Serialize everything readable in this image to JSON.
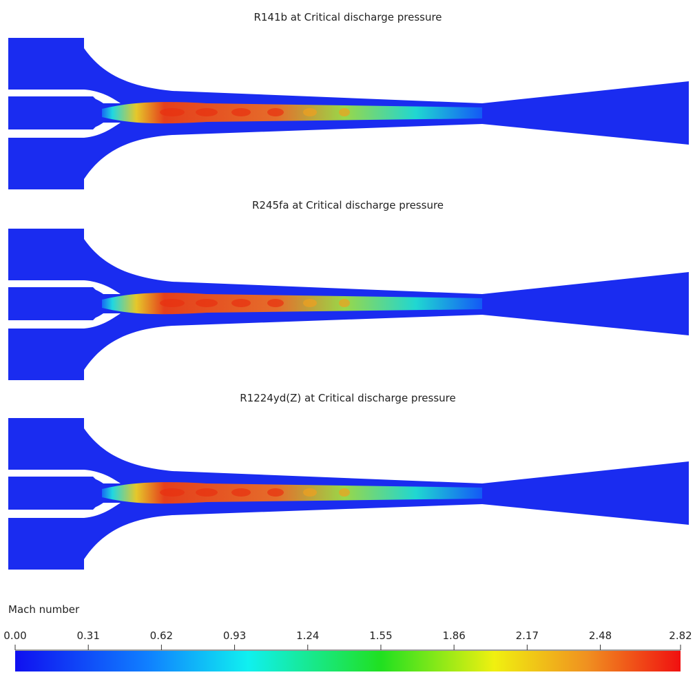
{
  "panels": [
    {
      "title": "R141b at Critical discharge pressure"
    },
    {
      "title": "R245fa at Critical discharge pressure"
    },
    {
      "title": "R1224yd(Z) at Critical discharge pressure"
    }
  ],
  "colorbar": {
    "label": "Mach number",
    "ticks": [
      {
        "value": 0,
        "label": "0.00"
      },
      {
        "value": 0.31,
        "label": "0.31"
      },
      {
        "value": 0.62,
        "label": "0.62"
      },
      {
        "value": 0.93,
        "label": "0.93"
      },
      {
        "value": 1.24,
        "label": "1.24"
      },
      {
        "value": 1.55,
        "label": "1.55"
      },
      {
        "value": 1.86,
        "label": "1.86"
      },
      {
        "value": 2.17,
        "label": "2.17"
      },
      {
        "value": 2.48,
        "label": "2.48"
      },
      {
        "value": 2.82,
        "label": "2.82"
      }
    ]
  }
}
